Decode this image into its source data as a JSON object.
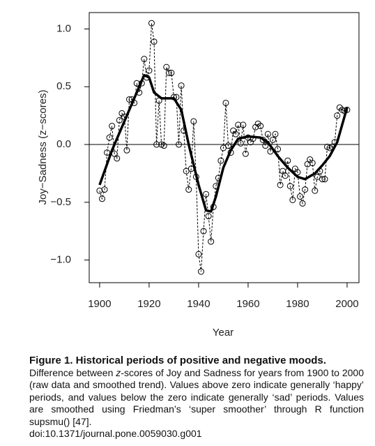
{
  "chart_data": {
    "type": "line",
    "xlabel": "Year",
    "ylabel": "Joy−Sadness (z−scores)",
    "xlim": [
      1895.8,
      2004.8
    ],
    "ylim": [
      -1.196,
      1.142
    ],
    "xticks": [
      1900,
      1920,
      1940,
      1960,
      1980,
      2000
    ],
    "yticks": [
      {
        "value": -1.0,
        "label": "−1.0"
      },
      {
        "value": -0.5,
        "label": "−0.5"
      },
      {
        "value": 0,
        "label": "0.0"
      },
      {
        "value": 0.5,
        "label": "0.5"
      },
      {
        "value": 1.0,
        "label": "1.0"
      }
    ],
    "hline": 0,
    "color": "#000000",
    "raw": {
      "x": [
        1900,
        1901,
        1902,
        1903,
        1904,
        1905,
        1906,
        1907,
        1908,
        1909,
        1910,
        1911,
        1912,
        1913,
        1914,
        1915,
        1916,
        1917,
        1918,
        1919,
        1920,
        1921,
        1922,
        1923,
        1924,
        1925,
        1926,
        1927,
        1928,
        1929,
        1930,
        1931,
        1932,
        1933,
        1934,
        1935,
        1936,
        1937,
        1938,
        1939,
        1940,
        1941,
        1942,
        1943,
        1944,
        1945,
        1946,
        1947,
        1948,
        1949,
        1950,
        1951,
        1952,
        1953,
        1954,
        1955,
        1956,
        1957,
        1958,
        1959,
        1960,
        1961,
        1962,
        1963,
        1964,
        1965,
        1966,
        1967,
        1968,
        1969,
        1970,
        1971,
        1972,
        1973,
        1974,
        1975,
        1976,
        1977,
        1978,
        1979,
        1980,
        1981,
        1982,
        1983,
        1984,
        1985,
        1986,
        1987,
        1988,
        1989,
        1990,
        1991,
        1992,
        1993,
        1994,
        1995,
        1996,
        1997,
        1998,
        1999,
        2000
      ],
      "values": [
        -0.4,
        -0.47,
        -0.39,
        -0.07,
        0.06,
        0.16,
        -0.08,
        -0.12,
        0.21,
        0.27,
        0.24,
        -0.05,
        0.39,
        0.39,
        0.36,
        0.53,
        0.45,
        0.53,
        0.74,
        0.58,
        0.64,
        1.05,
        0.89,
        0.0,
        0.38,
        0.0,
        -0.01,
        0.67,
        0.62,
        0.62,
        0.41,
        0.41,
        0.0,
        0.51,
        0.12,
        -0.23,
        -0.39,
        -0.21,
        0.2,
        -0.28,
        -0.95,
        -1.1,
        -0.75,
        -0.43,
        -0.62,
        -0.84,
        -0.54,
        -0.36,
        -0.29,
        -0.14,
        -0.03,
        0.36,
        -0.01,
        -0.07,
        0.12,
        0.09,
        0.17,
        0.01,
        0.17,
        -0.08,
        0.06,
        0.02,
        0.05,
        0.15,
        0.18,
        0.16,
        0.04,
        -0.01,
        0.09,
        -0.06,
        0.04,
        0.09,
        -0.04,
        -0.35,
        -0.23,
        -0.27,
        -0.14,
        -0.36,
        -0.48,
        -0.21,
        -0.24,
        -0.45,
        -0.51,
        -0.39,
        -0.17,
        -0.13,
        -0.16,
        -0.4,
        -0.28,
        -0.23,
        -0.3,
        -0.3,
        -0.02,
        -0.03,
        -0.02,
        0.02,
        0.25,
        0.32,
        0.3,
        0.29,
        0.3
      ]
    },
    "smoothed": {
      "x": [
        1900,
        1905,
        1910,
        1915,
        1918,
        1920,
        1922,
        1925,
        1930,
        1933,
        1936,
        1940,
        1943,
        1945,
        1947,
        1950,
        1953,
        1956,
        1960,
        1965,
        1968,
        1972,
        1976,
        1980,
        1983,
        1987,
        1990,
        1993,
        1996,
        2000
      ],
      "values": [
        -0.35,
        -0.05,
        0.2,
        0.45,
        0.6,
        0.58,
        0.45,
        0.4,
        0.4,
        0.3,
        0.0,
        -0.35,
        -0.57,
        -0.58,
        -0.45,
        -0.2,
        -0.05,
        0.05,
        0.07,
        0.06,
        0.02,
        -0.1,
        -0.2,
        -0.28,
        -0.3,
        -0.25,
        -0.18,
        -0.1,
        0.02,
        0.32
      ]
    }
  },
  "caption": {
    "title": "Figure 1. Historical periods of positive and negative moods.",
    "text_before": "Difference between ",
    "italic": "z",
    "text_after": "-scores of Joy and Sadness for years from 1900 to 2000 (raw data and smoothed trend). Values above zero indicate generally ‘happy’ periods, and values below the zero indicate generally ‘sad’ periods. Values are smoothed using Friedman’s ‘super smoother’ through R function supsmu() [47].",
    "doi": "doi:10.1371/journal.pone.0059030.g001"
  }
}
